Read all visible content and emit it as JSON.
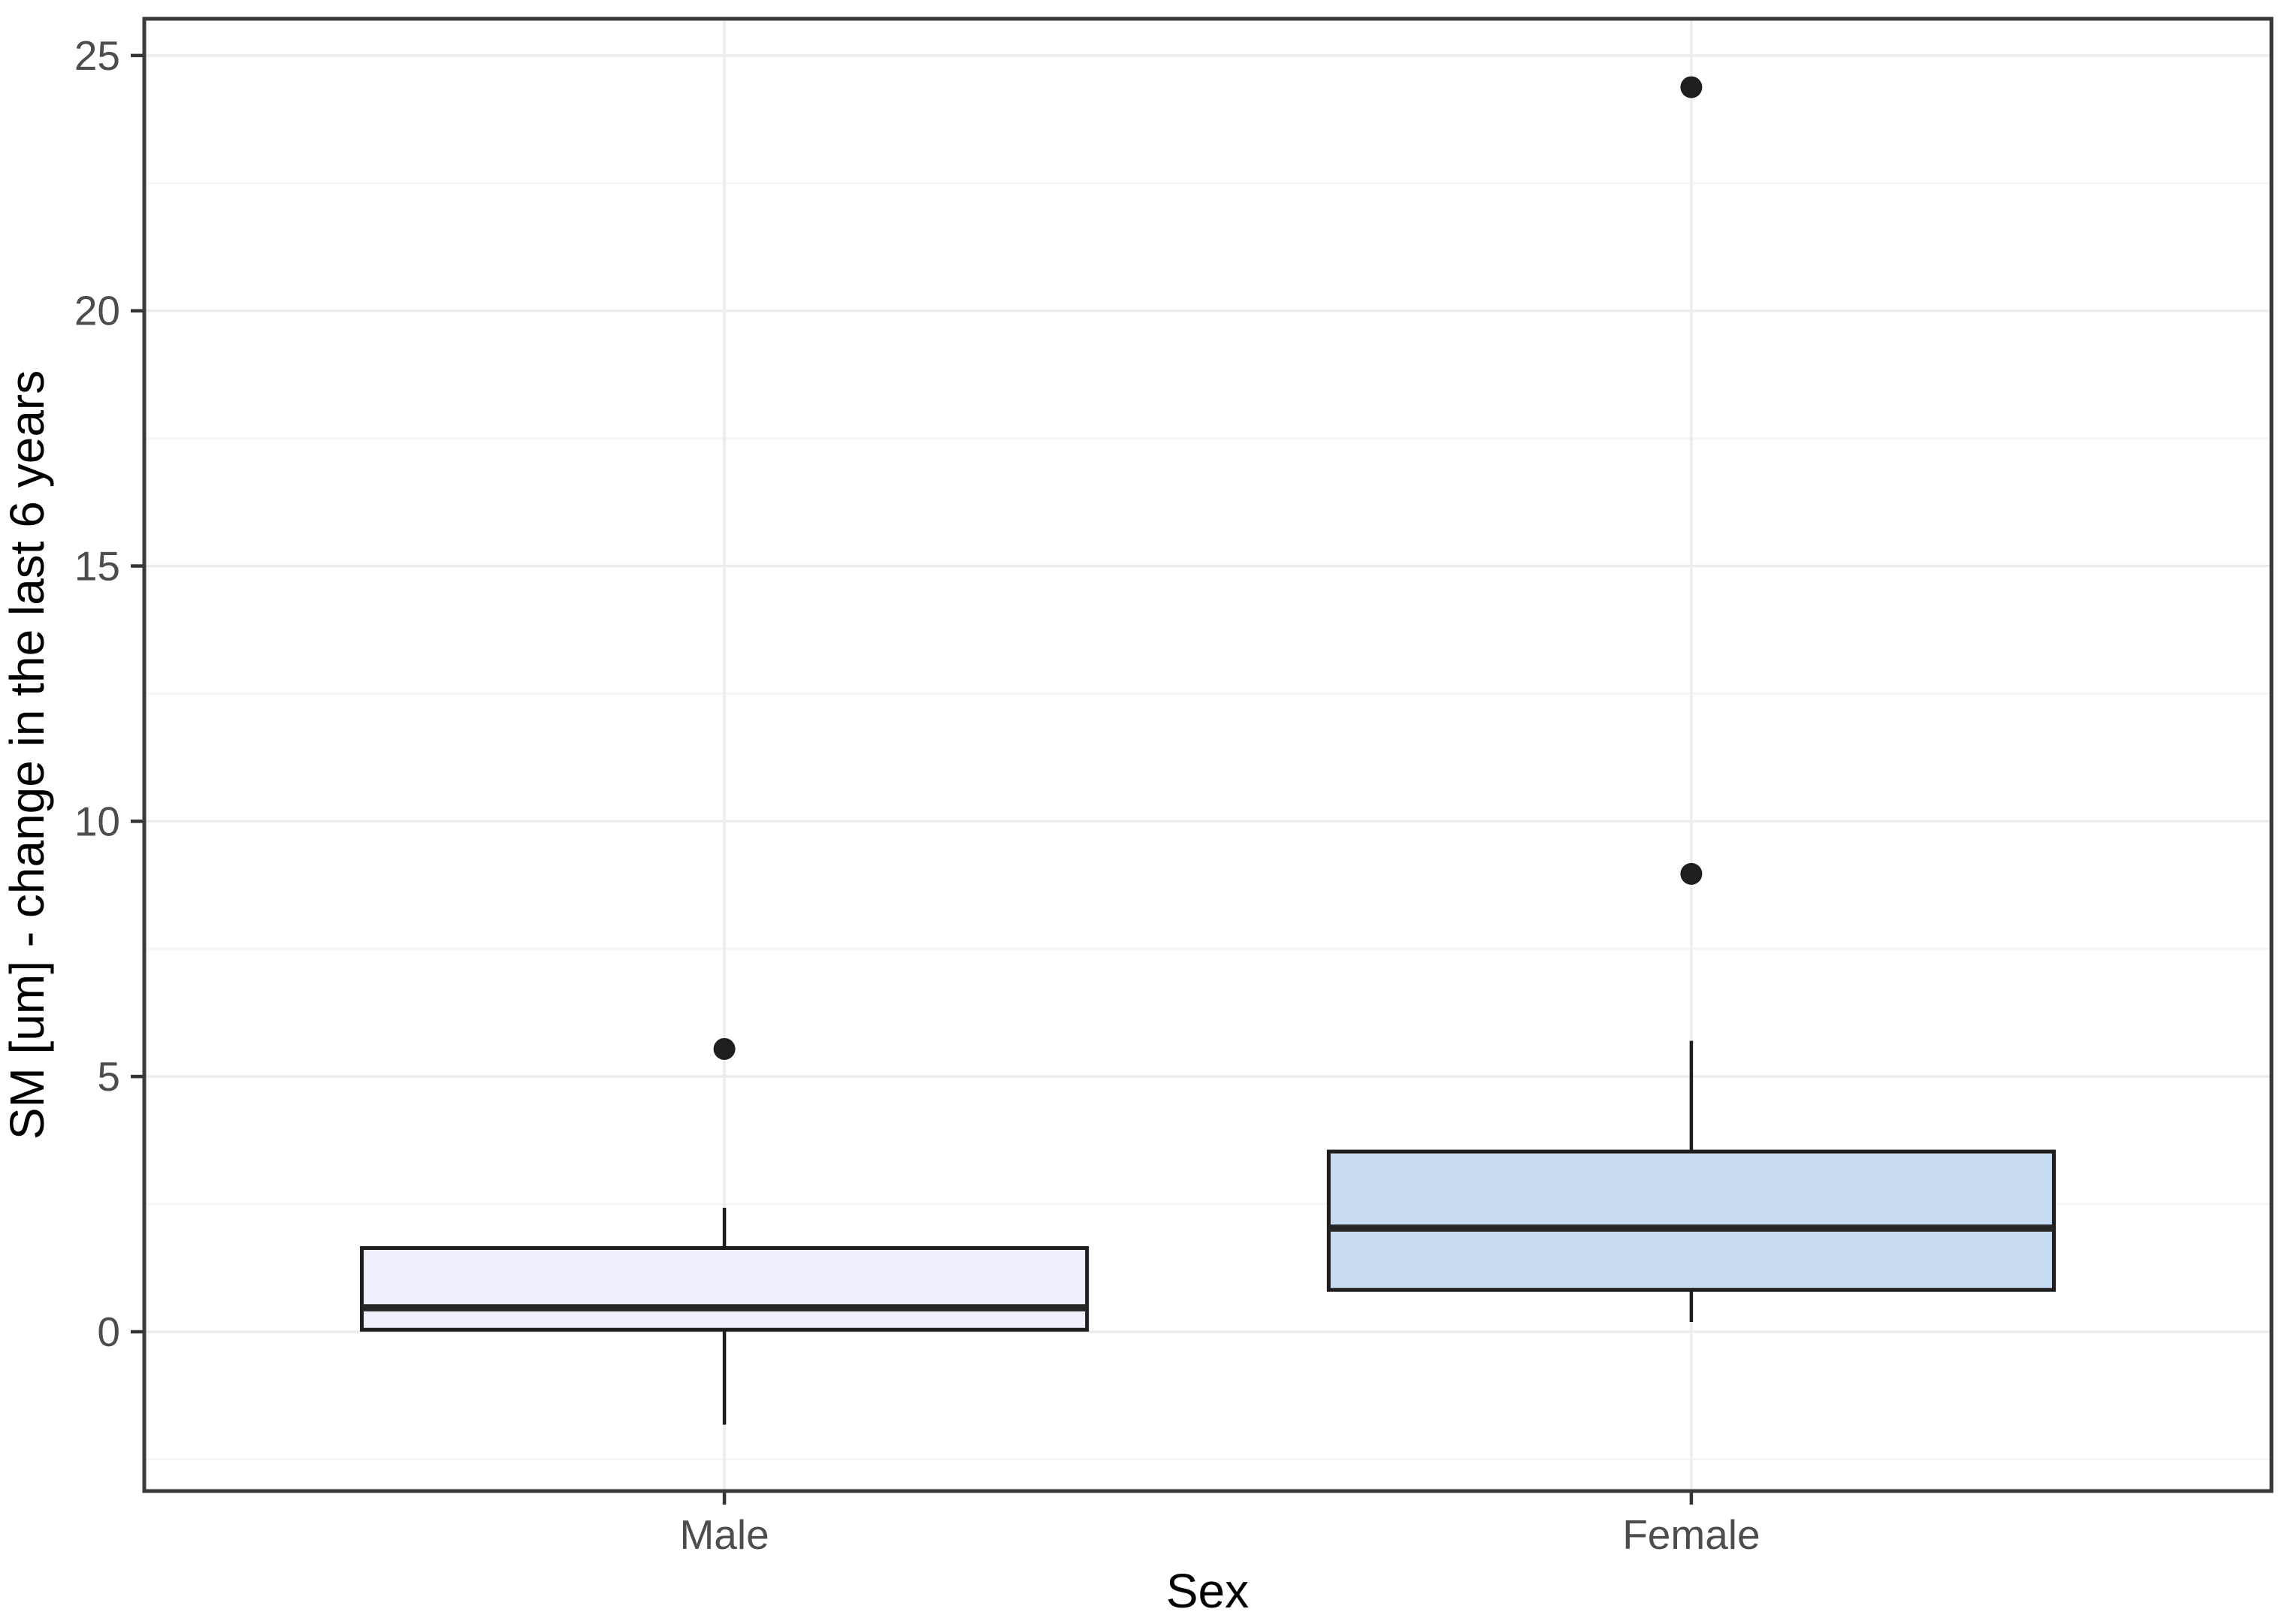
{
  "figure": {
    "background": "#FFFFFF"
  },
  "chart_data": {
    "type": "boxplot",
    "title": "",
    "xlabel": "Sex",
    "ylabel": "SM [um] - change in the last 6 years",
    "categories": [
      "Male",
      "Female"
    ],
    "series": [
      {
        "name": "Male",
        "whisker_low": -1.82,
        "q1": 0.04,
        "median": 0.47,
        "q3": 1.64,
        "whisker_high": 2.43,
        "outliers": [
          5.54
        ],
        "fill": "#EEF1FB"
      },
      {
        "name": "Female",
        "whisker_low": 0.19,
        "q1": 0.82,
        "median": 2.03,
        "q3": 3.53,
        "whisker_high": 5.7,
        "outliers": [
          8.97,
          24.38
        ],
        "fill": "#C6DBEF"
      }
    ],
    "yticks": [
      0,
      5,
      10,
      15,
      20,
      25
    ],
    "ylim": [
      -3.12,
      25.72
    ],
    "minor_grid_step": 2.5,
    "grid": true,
    "legend": "none",
    "box_width_fraction": 0.75,
    "colors": {
      "box_border": "#1E1E1E",
      "median": "#262626",
      "whisker": "#1E1E1E",
      "outlier": "#1E1E1E",
      "grid_major": "#ECECEC",
      "grid_minor": "#F5F5F5",
      "panel_border": "#3A3A3A",
      "tick_mark": "#333333",
      "tick_label": "#4D4D4D",
      "axis_title": "#000000",
      "panel_background": "#FFFFFF"
    }
  }
}
